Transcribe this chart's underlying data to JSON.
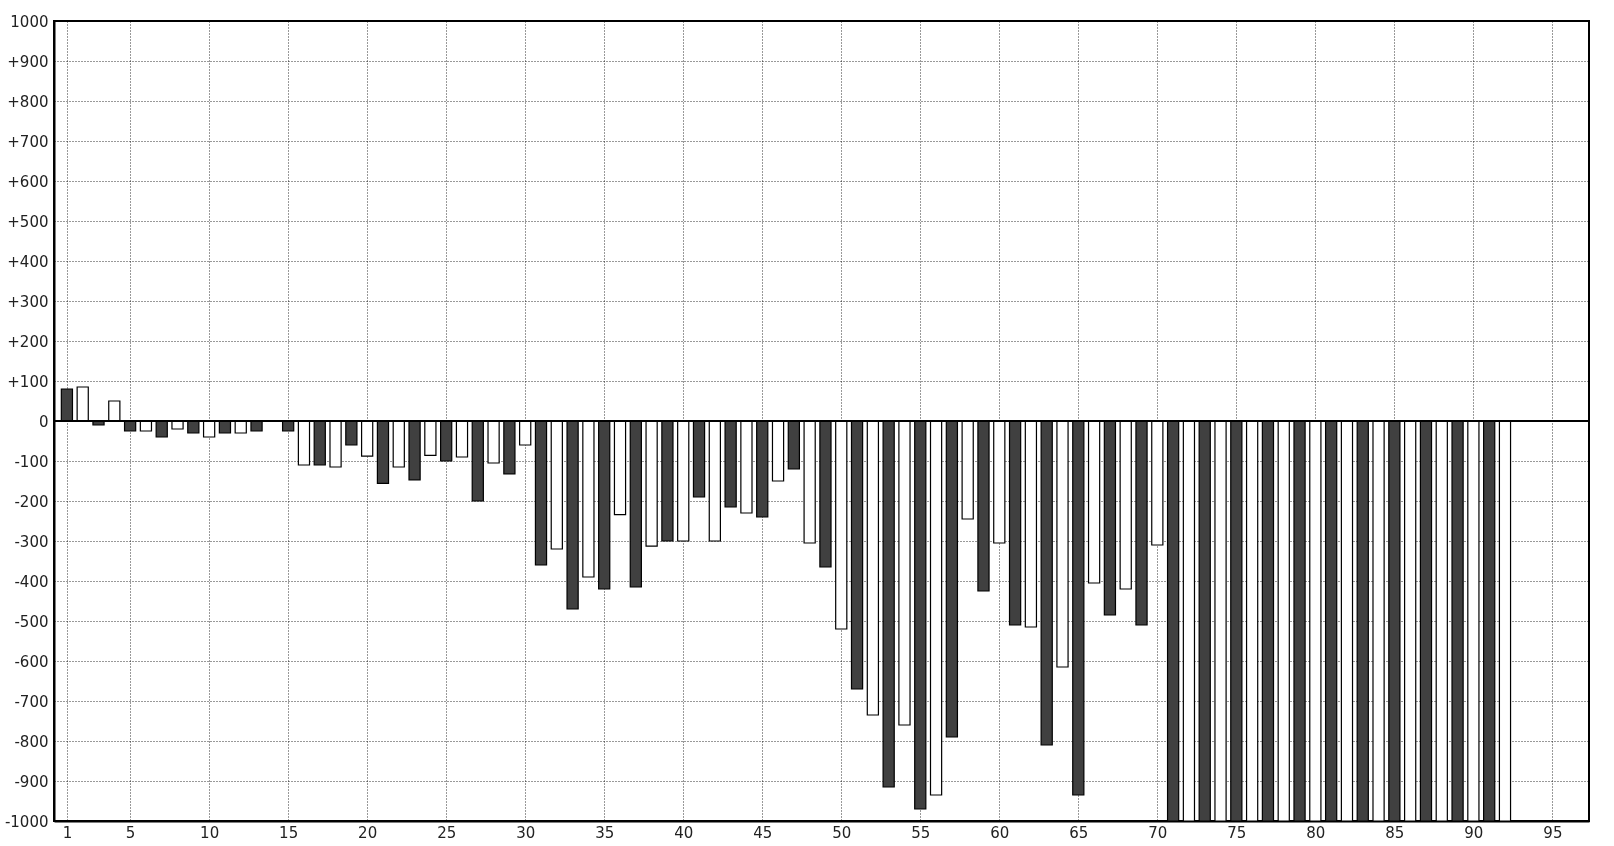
{
  "chart_data": {
    "type": "bar",
    "x": [
      1,
      2,
      3,
      4,
      5,
      6,
      7,
      8,
      9,
      10,
      11,
      12,
      13,
      14,
      15,
      16,
      17,
      18,
      19,
      20,
      21,
      22,
      23,
      24,
      25,
      26,
      27,
      28,
      29,
      30,
      31,
      32,
      33,
      34,
      35,
      36,
      37,
      38,
      39,
      40,
      41,
      42,
      43,
      44,
      45,
      46,
      47,
      48,
      49,
      50,
      51,
      52,
      53,
      54,
      55,
      56,
      57,
      58,
      59,
      60,
      61,
      62,
      63,
      64,
      65,
      66,
      67,
      68,
      69,
      70,
      71,
      72,
      73,
      74,
      75,
      76,
      77,
      78,
      79,
      80,
      81,
      82,
      83,
      84,
      85,
      86,
      87,
      88,
      89,
      90,
      91,
      92
    ],
    "values": [
      80,
      85,
      -10,
      50,
      -25,
      -25,
      -40,
      -20,
      -30,
      -40,
      -30,
      -30,
      -25,
      null,
      -25,
      -110,
      -110,
      -115,
      -60,
      -88,
      -156,
      -115,
      -147,
      -86,
      -100,
      -90,
      -200,
      -105,
      -132,
      -60,
      -360,
      -320,
      -470,
      -390,
      -420,
      -234,
      -415,
      -313,
      -300,
      -300,
      -190,
      -300,
      -215,
      -230,
      -240,
      -150,
      -120,
      -305,
      -365,
      -520,
      -670,
      -735,
      -915,
      -760,
      -970,
      -935,
      -790,
      -245,
      -425,
      -305,
      -510,
      -515,
      -810,
      -615,
      -935,
      -405,
      -485,
      -420,
      -510,
      -310,
      -1000,
      -1000,
      -1000,
      -1000,
      -1000,
      -1000,
      -1000,
      -1000,
      -1000,
      -1000,
      -1000,
      -1000,
      -1000,
      -1000,
      -1000,
      -1000,
      -1000,
      -1000,
      -1000,
      -1000,
      -1000,
      -1000
    ],
    "colors": [
      "#404040",
      "#ffffff",
      "#404040",
      "#ffffff",
      "#404040",
      "#ffffff",
      "#404040",
      "#ffffff",
      "#404040",
      "#ffffff",
      "#404040",
      "#ffffff",
      "#404040",
      "#ffffff",
      "#404040",
      "#ffffff",
      "#404040",
      "#ffffff",
      "#404040",
      "#ffffff",
      "#404040",
      "#ffffff",
      "#404040",
      "#ffffff",
      "#404040",
      "#ffffff",
      "#404040",
      "#ffffff",
      "#404040",
      "#ffffff",
      "#404040",
      "#ffffff",
      "#404040",
      "#ffffff",
      "#404040",
      "#ffffff",
      "#404040",
      "#ffffff",
      "#404040",
      "#ffffff",
      "#404040",
      "#ffffff",
      "#404040",
      "#ffffff",
      "#404040",
      "#ffffff",
      "#404040",
      "#ffffff",
      "#404040",
      "#ffffff",
      "#404040",
      "#ffffff",
      "#404040",
      "#ffffff",
      "#404040",
      "#ffffff",
      "#404040",
      "#ffffff",
      "#404040",
      "#ffffff",
      "#404040",
      "#ffffff",
      "#404040",
      "#ffffff",
      "#404040",
      "#ffffff",
      "#404040",
      "#ffffff",
      "#404040",
      "#ffffff",
      "#404040",
      "#ffffff",
      "#404040",
      "#ffffff",
      "#404040",
      "#ffffff",
      "#404040",
      "#ffffff",
      "#404040",
      "#ffffff",
      "#404040",
      "#ffffff",
      "#404040",
      "#ffffff",
      "#404040",
      "#ffffff",
      "#404040",
      "#ffffff",
      "#404040",
      "#ffffff",
      "#404040",
      "#ffffff"
    ],
    "xlim": [
      0.5,
      97
    ],
    "xticks": [
      1,
      5,
      10,
      15,
      20,
      25,
      30,
      35,
      40,
      45,
      50,
      55,
      60,
      65,
      70,
      75,
      80,
      85,
      90,
      95
    ],
    "ylim": [
      -1000,
      1000
    ],
    "yticks": [
      -1000,
      -900,
      -800,
      -700,
      -600,
      -500,
      -400,
      -300,
      -200,
      -100,
      0,
      {
        "value": 100,
        "label": "+100"
      },
      {
        "value": 200,
        "label": "+200"
      },
      {
        "value": 300,
        "label": "+300"
      },
      {
        "value": 400,
        "label": "+400"
      },
      {
        "value": 500,
        "label": "+500"
      },
      {
        "value": 600,
        "label": "+600"
      },
      {
        "value": 700,
        "label": "+700"
      },
      {
        "value": 800,
        "label": "+800"
      },
      {
        "value": 900,
        "label": "+900"
      },
      1000
    ],
    "ref_lines": [
      {
        "axis": "y",
        "value": 0
      }
    ],
    "grid": true,
    "line_style": "dotted"
  }
}
